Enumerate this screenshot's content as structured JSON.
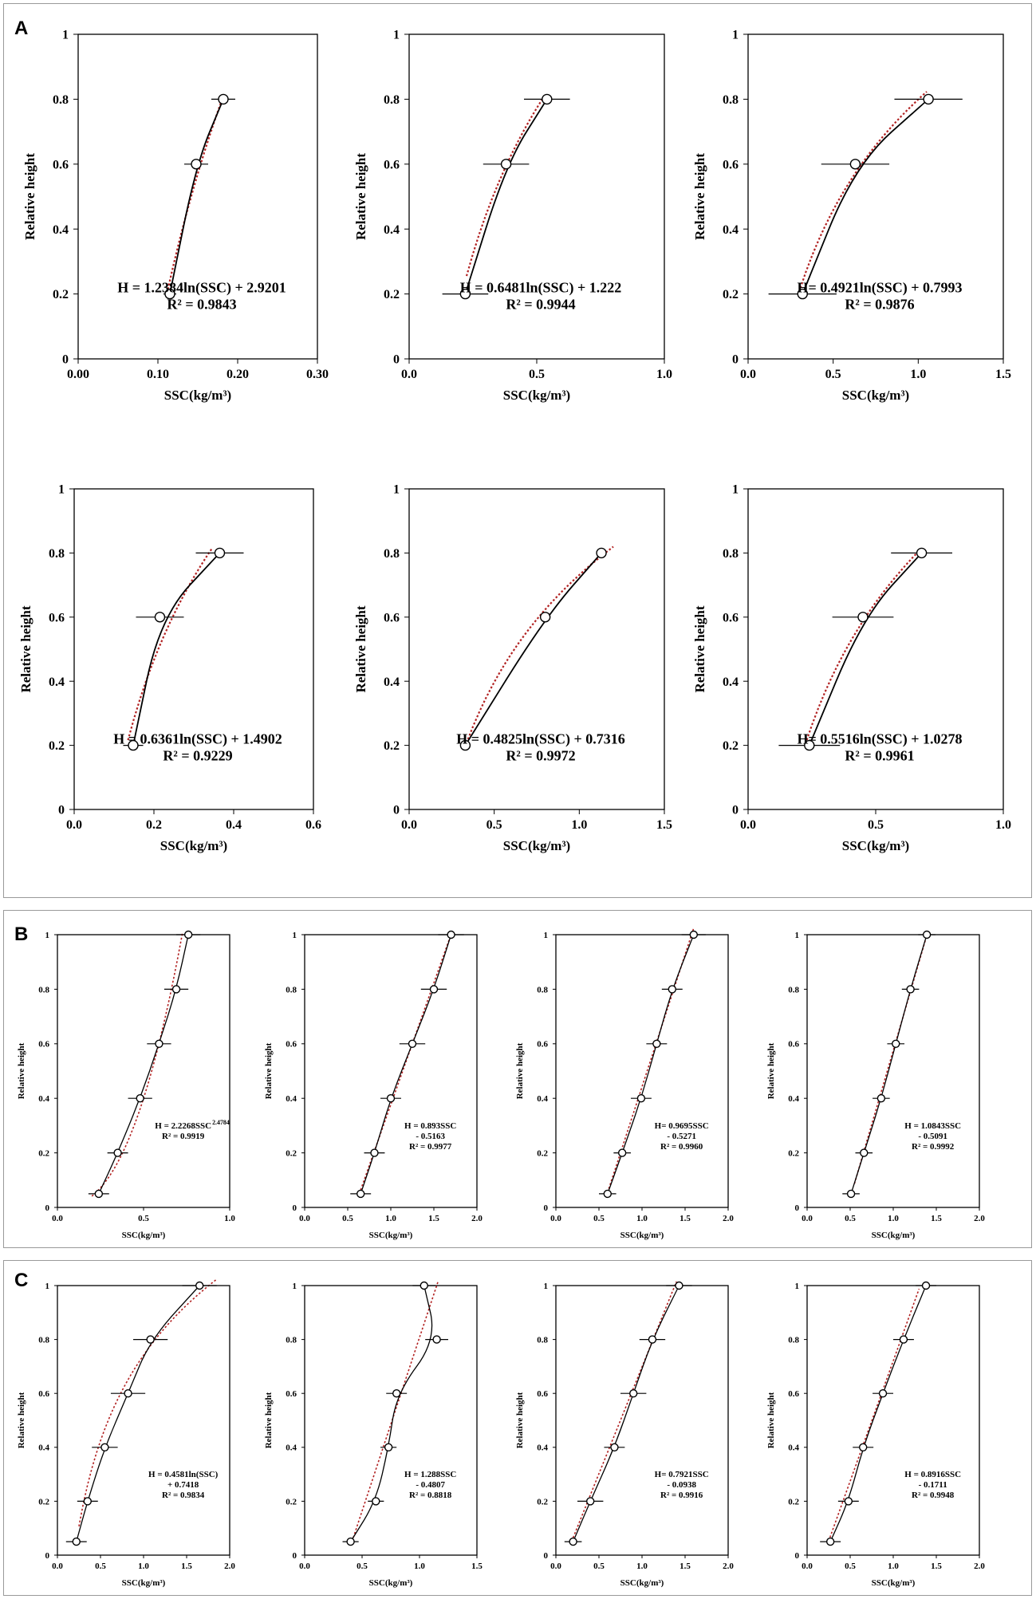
{
  "panels": [
    {
      "letter": "A"
    },
    {
      "letter": "B"
    },
    {
      "letter": "C"
    }
  ],
  "chart_data": [
    {
      "type": "scatter",
      "panel": "A",
      "title": "",
      "xlabel": "SSC(kg/m³)",
      "ylabel": "Relative height",
      "xlim": [
        0,
        0.3
      ],
      "ylim": [
        0,
        1
      ],
      "xticks": [
        "0.00",
        "0.10",
        "0.20",
        "0.30"
      ],
      "yticks": [
        "0",
        "0.2",
        "0.4",
        "0.6",
        "0.8",
        "1"
      ],
      "points": [
        {
          "x": 0.115,
          "y": 0.2,
          "err": 0.008
        },
        {
          "x": 0.148,
          "y": 0.6,
          "err": 0.015
        },
        {
          "x": 0.182,
          "y": 0.8,
          "err": 0.015
        }
      ],
      "fit": "log",
      "a": 1.2384,
      "b": 2.9201,
      "equation": [
        "H = 1.2384ln(SSC) + 2.9201",
        "R² = 0.9843"
      ]
    },
    {
      "type": "scatter",
      "panel": "A",
      "title": "",
      "xlabel": "SSC(kg/m³)",
      "ylabel": "Relative height",
      "xlim": [
        0,
        1.0
      ],
      "ylim": [
        0,
        1
      ],
      "xticks": [
        "0.0",
        "0.5",
        "1.0"
      ],
      "yticks": [
        "0",
        "0.2",
        "0.4",
        "0.6",
        "0.8",
        "1"
      ],
      "points": [
        {
          "x": 0.22,
          "y": 0.2,
          "err": 0.09
        },
        {
          "x": 0.38,
          "y": 0.6,
          "err": 0.09
        },
        {
          "x": 0.54,
          "y": 0.8,
          "err": 0.09
        }
      ],
      "fit": "log",
      "a": 0.6481,
      "b": 1.222,
      "equation": [
        "H = 0.6481ln(SSC) + 1.222",
        "R² = 0.9944"
      ]
    },
    {
      "type": "scatter",
      "panel": "A",
      "title": "",
      "xlabel": "SSC(kg/m³)",
      "ylabel": "Relative height",
      "xlim": [
        0,
        1.5
      ],
      "ylim": [
        0,
        1
      ],
      "xticks": [
        "0.0",
        "0.5",
        "1.0",
        "1.5"
      ],
      "yticks": [
        "0",
        "0.2",
        "0.4",
        "0.6",
        "0.8",
        "1"
      ],
      "points": [
        {
          "x": 0.32,
          "y": 0.2,
          "err": 0.2
        },
        {
          "x": 0.63,
          "y": 0.6,
          "err": 0.2
        },
        {
          "x": 1.06,
          "y": 0.8,
          "err": 0.2
        }
      ],
      "fit": "log",
      "a": 0.4921,
      "b": 0.7993,
      "equation": [
        "H= 0.4921ln(SSC) + 0.7993",
        "R² = 0.9876"
      ]
    },
    {
      "type": "scatter",
      "panel": "A",
      "title": "",
      "xlabel": "SSC(kg/m³)",
      "ylabel": "Relative height",
      "xlim": [
        0,
        0.6
      ],
      "ylim": [
        0,
        1
      ],
      "xticks": [
        "0.0",
        "0.2",
        "0.4",
        "0.6"
      ],
      "yticks": [
        "0",
        "0.2",
        "0.4",
        "0.6",
        "0.8",
        "1"
      ],
      "points": [
        {
          "x": 0.148,
          "y": 0.2,
          "err": 0.025
        },
        {
          "x": 0.215,
          "y": 0.6,
          "err": 0.06
        },
        {
          "x": 0.365,
          "y": 0.8,
          "err": 0.06
        }
      ],
      "fit": "log",
      "a": 0.6361,
      "b": 1.4902,
      "equation": [
        "H = 0.6361ln(SSC) + 1.4902",
        "R² = 0.9229"
      ]
    },
    {
      "type": "scatter",
      "panel": "A",
      "title": "",
      "xlabel": "SSC(kg/m³)",
      "ylabel": "Relative height",
      "xlim": [
        0,
        1.5
      ],
      "ylim": [
        0,
        1
      ],
      "xticks": [
        "0.0",
        "0.5",
        "1.0",
        "1.5"
      ],
      "yticks": [
        "0",
        "0.2",
        "0.4",
        "0.6",
        "0.8",
        "1"
      ],
      "points": [
        {
          "x": 0.33,
          "y": 0.2,
          "err": 0.02
        },
        {
          "x": 0.8,
          "y": 0.6,
          "err": 0.02
        },
        {
          "x": 1.13,
          "y": 0.8,
          "err": 0.02
        }
      ],
      "fit": "log",
      "a": 0.4825,
      "b": 0.7316,
      "equation": [
        "H = 0.4825ln(SSC) + 0.7316",
        "R² = 0.9972"
      ]
    },
    {
      "type": "scatter",
      "panel": "A",
      "title": "",
      "xlabel": "SSC(kg/m³)",
      "ylabel": "Relative height",
      "xlim": [
        0,
        1.0
      ],
      "ylim": [
        0,
        1
      ],
      "xticks": [
        "0.0",
        "0.5",
        "1.0"
      ],
      "yticks": [
        "0",
        "0.2",
        "0.4",
        "0.6",
        "0.8",
        "1"
      ],
      "points": [
        {
          "x": 0.24,
          "y": 0.2,
          "err": 0.12
        },
        {
          "x": 0.45,
          "y": 0.6,
          "err": 0.12
        },
        {
          "x": 0.68,
          "y": 0.8,
          "err": 0.12
        }
      ],
      "fit": "log",
      "a": 0.5516,
      "b": 1.0278,
      "equation": [
        "H= 0.5516ln(SSC) + 1.0278",
        "R² = 0.9961"
      ]
    },
    {
      "type": "scatter",
      "panel": "B",
      "title": "",
      "xlabel": "SSC(kg/m³)",
      "ylabel": "Relative height",
      "xlim": [
        0,
        1.0
      ],
      "ylim": [
        0,
        1
      ],
      "xticks": [
        "0.0",
        "0.5",
        "1.0"
      ],
      "yticks": [
        "0",
        "0.2",
        "0.4",
        "0.6",
        "0.8",
        "1"
      ],
      "points": [
        {
          "x": 0.24,
          "y": 0.05,
          "err": 0.06
        },
        {
          "x": 0.35,
          "y": 0.2,
          "err": 0.06
        },
        {
          "x": 0.48,
          "y": 0.4,
          "err": 0.07
        },
        {
          "x": 0.59,
          "y": 0.6,
          "err": 0.07
        },
        {
          "x": 0.69,
          "y": 0.8,
          "err": 0.07
        },
        {
          "x": 0.76,
          "y": 1.0,
          "err": 0.07
        }
      ],
      "fit": "power",
      "a": 2.2268,
      "b": 2.4784,
      "equation": [
        "H = 2.2268SSC",
        "2.4784",
        "R² = 0.9919"
      ]
    },
    {
      "type": "scatter",
      "panel": "B",
      "title": "",
      "xlabel": "SSC(kg/m³)",
      "ylabel": "Relative height",
      "xlim": [
        0,
        2.0
      ],
      "ylim": [
        0,
        1
      ],
      "xticks": [
        "0.0",
        "0.5",
        "1.0",
        "1.5",
        "2.0"
      ],
      "yticks": [
        "0",
        "0.2",
        "0.4",
        "0.6",
        "0.8",
        "1"
      ],
      "points": [
        {
          "x": 0.65,
          "y": 0.05,
          "err": 0.12
        },
        {
          "x": 0.81,
          "y": 0.2,
          "err": 0.12
        },
        {
          "x": 1.0,
          "y": 0.4,
          "err": 0.12
        },
        {
          "x": 1.25,
          "y": 0.6,
          "err": 0.15
        },
        {
          "x": 1.5,
          "y": 0.8,
          "err": 0.15
        },
        {
          "x": 1.7,
          "y": 1.0,
          "err": 0.15
        }
      ],
      "fit": "linear",
      "a": 0.893,
      "b": -0.5163,
      "equation": [
        "H = 0.893SSC",
        "- 0.5163",
        "R² = 0.9977"
      ]
    },
    {
      "type": "scatter",
      "panel": "B",
      "title": "",
      "xlabel": "SSC(kg/m³)",
      "ylabel": "Relative height",
      "xlim": [
        0,
        2.0
      ],
      "ylim": [
        0,
        1
      ],
      "xticks": [
        "0.0",
        "0.5",
        "1.0",
        "1.5",
        "2.0"
      ],
      "yticks": [
        "0",
        "0.2",
        "0.4",
        "0.6",
        "0.8",
        "1"
      ],
      "points": [
        {
          "x": 0.6,
          "y": 0.05,
          "err": 0.1
        },
        {
          "x": 0.77,
          "y": 0.2,
          "err": 0.1
        },
        {
          "x": 0.99,
          "y": 0.4,
          "err": 0.12
        },
        {
          "x": 1.17,
          "y": 0.6,
          "err": 0.12
        },
        {
          "x": 1.35,
          "y": 0.8,
          "err": 0.12
        },
        {
          "x": 1.6,
          "y": 1.0,
          "err": 0.14
        }
      ],
      "fit": "linear",
      "a": 0.9695,
      "b": -0.5271,
      "equation": [
        "H= 0.9695SSC",
        "- 0.5271",
        "R² = 0.9960"
      ]
    },
    {
      "type": "scatter",
      "panel": "B",
      "title": "",
      "xlabel": "SSC(kg/m³)",
      "ylabel": "Relative height",
      "xlim": [
        0,
        2.0
      ],
      "ylim": [
        0,
        1
      ],
      "xticks": [
        "0.0",
        "0.5",
        "1.0",
        "1.5",
        "2.0"
      ],
      "yticks": [
        "0",
        "0.2",
        "0.4",
        "0.6",
        "0.8",
        "1"
      ],
      "points": [
        {
          "x": 0.51,
          "y": 0.05,
          "err": 0.1
        },
        {
          "x": 0.66,
          "y": 0.2,
          "err": 0.1
        },
        {
          "x": 0.86,
          "y": 0.4,
          "err": 0.1
        },
        {
          "x": 1.03,
          "y": 0.6,
          "err": 0.1
        },
        {
          "x": 1.2,
          "y": 0.8,
          "err": 0.1
        },
        {
          "x": 1.39,
          "y": 1.0,
          "err": 0.1
        }
      ],
      "fit": "linear",
      "a": 1.0843,
      "b": -0.5091,
      "equation": [
        "H = 1.0843SSC",
        "- 0.5091",
        "R² = 0.9992"
      ]
    },
    {
      "type": "scatter",
      "panel": "C",
      "title": "",
      "xlabel": "SSC(kg/m³)",
      "ylabel": "Relative height",
      "xlim": [
        0,
        2.0
      ],
      "ylim": [
        0,
        1
      ],
      "xticks": [
        "0.0",
        "0.5",
        "1.0",
        "1.5",
        "2.0"
      ],
      "yticks": [
        "0",
        "0.2",
        "0.4",
        "0.6",
        "0.8",
        "1"
      ],
      "points": [
        {
          "x": 0.22,
          "y": 0.05,
          "err": 0.12
        },
        {
          "x": 0.35,
          "y": 0.2,
          "err": 0.12
        },
        {
          "x": 0.55,
          "y": 0.4,
          "err": 0.15
        },
        {
          "x": 0.82,
          "y": 0.6,
          "err": 0.2
        },
        {
          "x": 1.08,
          "y": 0.8,
          "err": 0.2
        },
        {
          "x": 1.65,
          "y": 1.0,
          "err": 0.2
        }
      ],
      "fit": "log",
      "a": 0.45811,
      "b": 0.7418,
      "equation": [
        "H = 0.4581ln(SSC)",
        "+ 0.7418",
        "R² = 0.9834"
      ]
    },
    {
      "type": "scatter",
      "panel": "C",
      "title": "",
      "xlabel": "SSC(kg/m³)",
      "ylabel": "Relative height",
      "xlim": [
        0,
        1.5
      ],
      "ylim": [
        0,
        1
      ],
      "xticks": [
        "0.0",
        "0.5",
        "1.0",
        "1.5"
      ],
      "yticks": [
        "0",
        "0.2",
        "0.4",
        "0.6",
        "0.8",
        "1"
      ],
      "points": [
        {
          "x": 0.4,
          "y": 0.05,
          "err": 0.07
        },
        {
          "x": 0.62,
          "y": 0.2,
          "err": 0.07
        },
        {
          "x": 0.73,
          "y": 0.4,
          "err": 0.07
        },
        {
          "x": 0.8,
          "y": 0.6,
          "err": 0.09
        },
        {
          "x": 1.15,
          "y": 0.8,
          "err": 0.1
        },
        {
          "x": 1.04,
          "y": 1.0,
          "err": 0.1
        }
      ],
      "fit": "linear",
      "a": 1.288,
      "b": -0.4807,
      "equation": [
        "H = 1.288SSC",
        "- 0.4807",
        "R² = 0.8818"
      ]
    },
    {
      "type": "scatter",
      "panel": "C",
      "title": "",
      "xlabel": "SSC(kg/m³)",
      "ylabel": "Relative height",
      "xlim": [
        0,
        2.0
      ],
      "ylim": [
        0,
        1
      ],
      "xticks": [
        "0.0",
        "0.5",
        "1.0",
        "1.5",
        "2.0"
      ],
      "yticks": [
        "0",
        "0.2",
        "0.4",
        "0.6",
        "0.8",
        "1"
      ],
      "points": [
        {
          "x": 0.2,
          "y": 0.05,
          "err": 0.1
        },
        {
          "x": 0.4,
          "y": 0.2,
          "err": 0.15
        },
        {
          "x": 0.68,
          "y": 0.4,
          "err": 0.12
        },
        {
          "x": 0.9,
          "y": 0.6,
          "err": 0.15
        },
        {
          "x": 1.12,
          "y": 0.8,
          "err": 0.15
        },
        {
          "x": 1.43,
          "y": 1.0,
          "err": 0.15
        }
      ],
      "fit": "linear",
      "a": 0.7921,
      "b": -0.0938,
      "equation": [
        "H= 0.7921SSC",
        "- 0.0938",
        "R² = 0.9916"
      ]
    },
    {
      "type": "scatter",
      "panel": "C",
      "title": "",
      "xlabel": "SSC(kg/m³)",
      "ylabel": "Relative height",
      "xlim": [
        0,
        2.0
      ],
      "ylim": [
        0,
        1
      ],
      "xticks": [
        "0.0",
        "0.5",
        "1.0",
        "1.5",
        "2.0"
      ],
      "yticks": [
        "0",
        "0.2",
        "0.4",
        "0.6",
        "0.8",
        "1"
      ],
      "points": [
        {
          "x": 0.27,
          "y": 0.05,
          "err": 0.12
        },
        {
          "x": 0.48,
          "y": 0.2,
          "err": 0.12
        },
        {
          "x": 0.65,
          "y": 0.4,
          "err": 0.12
        },
        {
          "x": 0.88,
          "y": 0.6,
          "err": 0.12
        },
        {
          "x": 1.12,
          "y": 0.8,
          "err": 0.12
        },
        {
          "x": 1.38,
          "y": 1.0,
          "err": 0.12
        }
      ],
      "fit": "linear",
      "a": 0.8916,
      "b": -0.1711,
      "equation": [
        "H = 0.8916SSC",
        "- 0.1711",
        "R² = 0.9948"
      ]
    }
  ]
}
